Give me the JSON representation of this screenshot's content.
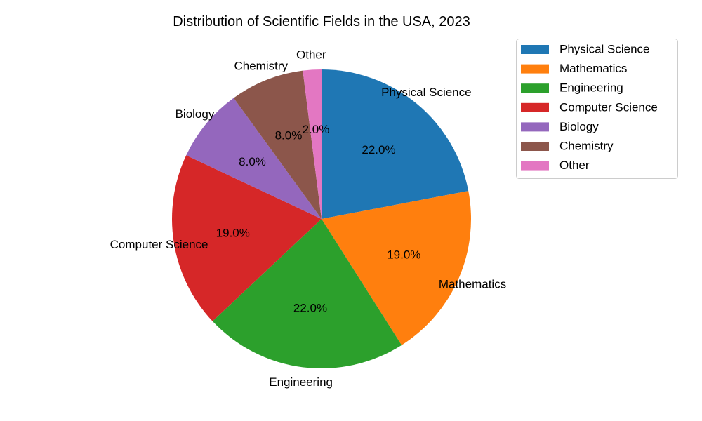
{
  "chart_data": {
    "type": "pie",
    "title": "Distribution of Scientific Fields in the USA, 2023",
    "categories": [
      "Physical Science",
      "Mathematics",
      "Engineering",
      "Computer Science",
      "Biology",
      "Chemistry",
      "Other"
    ],
    "values": [
      22.0,
      19.0,
      22.0,
      19.0,
      8.0,
      8.0,
      2.0
    ],
    "value_labels": [
      "22.0%",
      "19.0%",
      "22.0%",
      "19.0%",
      "8.0%",
      "8.0%",
      "2.0%"
    ],
    "colors": [
      "#1f77b4",
      "#ff7f0e",
      "#2ca02c",
      "#d62728",
      "#9467bd",
      "#8c564b",
      "#e377c2"
    ],
    "start_angle_deg": 90,
    "direction": "clockwise",
    "legend": {
      "placement": "upper-right, outside plot",
      "entries": [
        "Physical Science",
        "Mathematics",
        "Engineering",
        "Computer Science",
        "Biology",
        "Chemistry",
        "Other"
      ]
    }
  }
}
